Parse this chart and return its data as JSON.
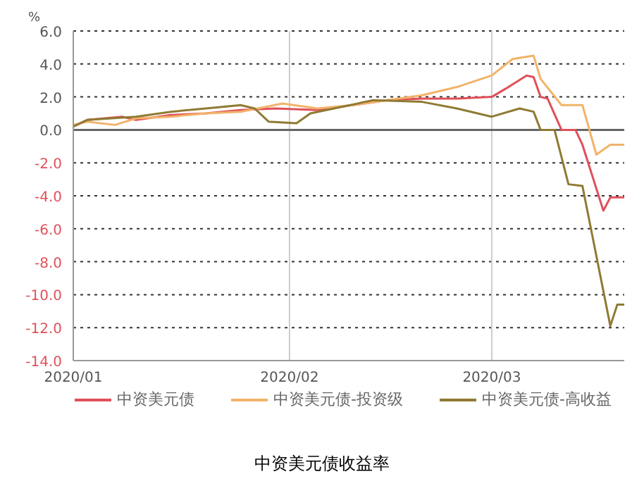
{
  "chart_data": {
    "type": "line",
    "title": "中资美元债收益率",
    "ylabel": "%",
    "xlim": [
      "2020-01-01",
      "2020-03-20"
    ],
    "xticks": [
      {
        "value": "2020-01-01",
        "label": "2020/01"
      },
      {
        "value": "2020-02-01",
        "label": "2020/02"
      },
      {
        "value": "2020-03-01",
        "label": "2020/03"
      }
    ],
    "ylim": [
      -14,
      6
    ],
    "yticks": [
      {
        "value": 6,
        "label": "6.0"
      },
      {
        "value": 4,
        "label": "4.0"
      },
      {
        "value": 2,
        "label": "2.0"
      },
      {
        "value": 0,
        "label": "0.0"
      },
      {
        "value": -2,
        "label": "-2.0"
      },
      {
        "value": -4,
        "label": "-4.0"
      },
      {
        "value": -6,
        "label": "-6.0"
      },
      {
        "value": -8,
        "label": "-8.0"
      },
      {
        "value": -10,
        "label": "-10.0"
      },
      {
        "value": -12,
        "label": "-12.0"
      },
      {
        "value": -14,
        "label": "-14.0"
      }
    ],
    "grid": true,
    "legend": "bottom",
    "marker": "none",
    "line_style": "solid",
    "ref_lines": [
      {
        "axis": "y",
        "value": 0,
        "label": null,
        "color": "#666666"
      }
    ],
    "series": [
      {
        "name": "中资美元债",
        "color": "#e0505a",
        "x": [
          "2020-01-01",
          "2020-01-03",
          "2020-01-08",
          "2020-01-10",
          "2020-01-15",
          "2020-01-20",
          "2020-01-25",
          "2020-01-30",
          "2020-02-05",
          "2020-02-10",
          "2020-02-15",
          "2020-02-20",
          "2020-02-25",
          "2020-03-01",
          "2020-03-03",
          "2020-03-06",
          "2020-03-07",
          "2020-03-08",
          "2020-03-09",
          "2020-03-11",
          "2020-03-13",
          "2020-03-14",
          "2020-03-17",
          "2020-03-18",
          "2020-03-20"
        ],
        "values": [
          0.2,
          0.6,
          0.8,
          0.6,
          0.9,
          1.0,
          1.2,
          1.3,
          1.2,
          1.5,
          1.8,
          1.9,
          1.9,
          2.0,
          2.5,
          3.3,
          3.2,
          2.0,
          1.9,
          0.0,
          0.0,
          -0.9,
          -4.9,
          -4.1,
          -4.1
        ]
      },
      {
        "name": "中资美元债-投资级",
        "color": "#f2b36a",
        "x": [
          "2020-01-01",
          "2020-01-03",
          "2020-01-07",
          "2020-01-10",
          "2020-01-15",
          "2020-01-20",
          "2020-01-25",
          "2020-01-31",
          "2020-02-05",
          "2020-02-10",
          "2020-02-15",
          "2020-02-20",
          "2020-02-25",
          "2020-03-01",
          "2020-03-04",
          "2020-03-07",
          "2020-03-08",
          "2020-03-11",
          "2020-03-14",
          "2020-03-15",
          "2020-03-16",
          "2020-03-17",
          "2020-03-18",
          "2020-03-20"
        ],
        "values": [
          0.3,
          0.5,
          0.3,
          0.7,
          0.8,
          1.0,
          1.1,
          1.6,
          1.3,
          1.5,
          1.8,
          2.1,
          2.6,
          3.3,
          4.3,
          4.5,
          3.1,
          1.5,
          1.5,
          0.0,
          -1.5,
          -1.2,
          -0.9,
          -0.9
        ]
      },
      {
        "name": "中资美元债-高收益",
        "color": "#8f7a33",
        "x": [
          "2020-01-01",
          "2020-01-03",
          "2020-01-10",
          "2020-01-15",
          "2020-01-20",
          "2020-01-25",
          "2020-01-27",
          "2020-01-29",
          "2020-02-02",
          "2020-02-04",
          "2020-02-13",
          "2020-02-20",
          "2020-02-25",
          "2020-03-01",
          "2020-03-05",
          "2020-03-07",
          "2020-03-08",
          "2020-03-10",
          "2020-03-12",
          "2020-03-14",
          "2020-03-18",
          "2020-03-19",
          "2020-03-20"
        ],
        "values": [
          0.2,
          0.6,
          0.8,
          1.1,
          1.3,
          1.5,
          1.3,
          0.5,
          0.4,
          1.0,
          1.8,
          1.7,
          1.3,
          0.8,
          1.3,
          1.1,
          0.0,
          0.0,
          -3.3,
          -3.4,
          -11.9,
          -10.6,
          -10.6
        ]
      }
    ]
  }
}
